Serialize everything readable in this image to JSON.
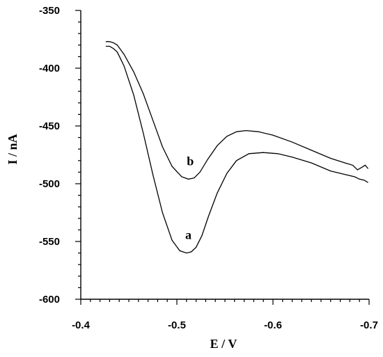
{
  "chart_data": {
    "type": "line",
    "title": "",
    "xlabel": "E / V",
    "ylabel": "I / nA",
    "xlim": [
      -0.4,
      -0.7
    ],
    "ylim": [
      -600,
      -350
    ],
    "x_ticks": [
      -0.4,
      -0.5,
      -0.6,
      -0.7
    ],
    "x_tick_labels": [
      "-0.4",
      "-0.5",
      "-0.6",
      "-0.7"
    ],
    "y_ticks": [
      -350,
      -400,
      -450,
      -500,
      -550,
      -600
    ],
    "y_tick_labels": [
      "-350",
      "-400",
      "-450",
      "-500",
      "-550",
      "-600"
    ],
    "grid": false,
    "series": [
      {
        "name": "a",
        "x": [
          -0.426,
          -0.43,
          -0.434,
          -0.438,
          -0.445,
          -0.455,
          -0.465,
          -0.475,
          -0.485,
          -0.495,
          -0.503,
          -0.51,
          -0.515,
          -0.52,
          -0.526,
          -0.533,
          -0.542,
          -0.552,
          -0.562,
          -0.575,
          -0.59,
          -0.605,
          -0.62,
          -0.64,
          -0.66,
          -0.675,
          -0.685,
          -0.69,
          -0.695,
          -0.699
        ],
        "y": [
          -381,
          -381,
          -383,
          -386,
          -398,
          -423,
          -456,
          -492,
          -525,
          -549,
          -558,
          -560,
          -559,
          -555,
          -545,
          -528,
          -508,
          -491,
          -480,
          -474,
          -473,
          -474,
          -477,
          -482,
          -489,
          -492,
          -494,
          -496,
          -497,
          -499
        ]
      },
      {
        "name": "b",
        "x": [
          -0.426,
          -0.43,
          -0.434,
          -0.438,
          -0.445,
          -0.455,
          -0.465,
          -0.475,
          -0.485,
          -0.495,
          -0.505,
          -0.512,
          -0.518,
          -0.524,
          -0.532,
          -0.542,
          -0.552,
          -0.562,
          -0.572,
          -0.585,
          -0.6,
          -0.62,
          -0.64,
          -0.66,
          -0.675,
          -0.683,
          -0.688,
          -0.692,
          -0.696,
          -0.699
        ],
        "y": [
          -377,
          -377,
          -378,
          -380,
          -388,
          -403,
          -422,
          -445,
          -468,
          -485,
          -494,
          -496,
          -495,
          -490,
          -479,
          -467,
          -459,
          -455,
          -454,
          -455,
          -458,
          -464,
          -471,
          -478,
          -482,
          -484,
          -488,
          -486,
          -484,
          -487
        ]
      }
    ],
    "annotations": [
      {
        "text": "a",
        "x": -0.512,
        "y": -548
      },
      {
        "text": "b",
        "x": -0.514,
        "y": -484
      }
    ]
  }
}
